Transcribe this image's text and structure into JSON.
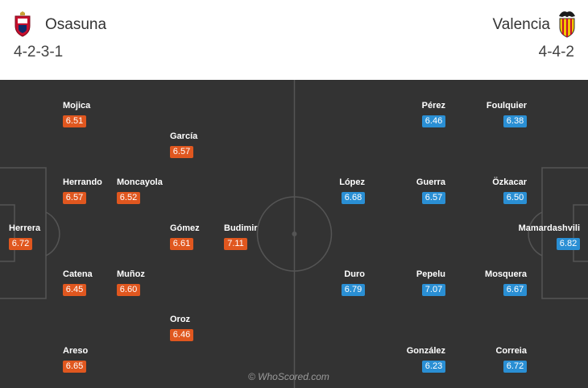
{
  "home_team": {
    "name": "Osasuna",
    "formation": "4-2-3-1",
    "color": "#e0571f",
    "players": [
      {
        "name": "Mojica",
        "rating": "6.51"
      },
      {
        "name": "García",
        "rating": "6.57"
      },
      {
        "name": "Herrando",
        "rating": "6.57"
      },
      {
        "name": "Moncayola",
        "rating": "6.52"
      },
      {
        "name": "Herrera",
        "rating": "6.72"
      },
      {
        "name": "Gómez",
        "rating": "6.61"
      },
      {
        "name": "Budimir",
        "rating": "7.11"
      },
      {
        "name": "Catena",
        "rating": "6.45"
      },
      {
        "name": "Muñoz",
        "rating": "6.60"
      },
      {
        "name": "Oroz",
        "rating": "6.46"
      },
      {
        "name": "Areso",
        "rating": "6.65"
      }
    ]
  },
  "away_team": {
    "name": "Valencia",
    "formation": "4-4-2",
    "color": "#2a8fd4",
    "players": [
      {
        "name": "Pérez",
        "rating": "6.46"
      },
      {
        "name": "Foulquier",
        "rating": "6.38"
      },
      {
        "name": "López",
        "rating": "6.68"
      },
      {
        "name": "Guerra",
        "rating": "6.57"
      },
      {
        "name": "Özkacar",
        "rating": "6.50"
      },
      {
        "name": "Mamardashvili",
        "rating": "6.82"
      },
      {
        "name": "Duro",
        "rating": "6.79"
      },
      {
        "name": "Pepelu",
        "rating": "7.07"
      },
      {
        "name": "Mosquera",
        "rating": "6.67"
      },
      {
        "name": "González",
        "rating": "6.23"
      },
      {
        "name": "Correia",
        "rating": "6.72"
      }
    ]
  },
  "watermark": "© WhoScored.com",
  "colors": {
    "pitch": "#333333",
    "lines": "#555555"
  }
}
